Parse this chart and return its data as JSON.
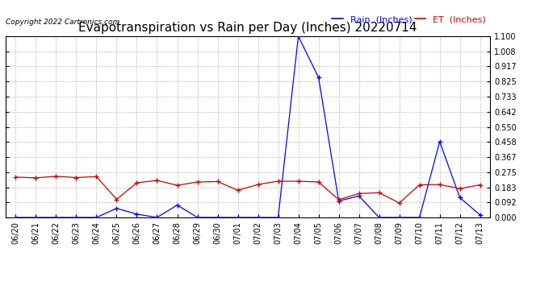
{
  "title": "Evapotranspiration vs Rain per Day (Inches) 20220714",
  "copyright": "Copyright 2022 Cartronics.com",
  "legend_rain": "Rain  (Inches)",
  "legend_et": "ET  (Inches)",
  "dates": [
    "06/20",
    "06/21",
    "06/22",
    "06/23",
    "06/24",
    "06/25",
    "06/26",
    "06/27",
    "06/28",
    "06/29",
    "06/30",
    "07/01",
    "07/02",
    "07/03",
    "07/04",
    "07/05",
    "07/06",
    "07/07",
    "07/08",
    "07/09",
    "07/10",
    "07/11",
    "07/12",
    "07/13"
  ],
  "rain": [
    0.0,
    0.0,
    0.0,
    0.0,
    0.0,
    0.055,
    0.02,
    0.0,
    0.075,
    0.0,
    0.0,
    0.0,
    0.0,
    0.0,
    1.1,
    0.85,
    0.1,
    0.13,
    0.0,
    0.0,
    0.0,
    0.46,
    0.12,
    0.015
  ],
  "et": [
    0.245,
    0.24,
    0.25,
    0.242,
    0.248,
    0.11,
    0.21,
    0.225,
    0.195,
    0.215,
    0.218,
    0.165,
    0.2,
    0.22,
    0.22,
    0.215,
    0.108,
    0.145,
    0.15,
    0.088,
    0.198,
    0.2,
    0.175,
    0.198
  ],
  "ylim": [
    0.0,
    1.1
  ],
  "yticks": [
    0.0,
    0.092,
    0.183,
    0.275,
    0.367,
    0.458,
    0.55,
    0.642,
    0.733,
    0.825,
    0.917,
    1.008,
    1.1
  ],
  "rain_color": "#0000ff",
  "et_color": "#cc0000",
  "background_color": "#ffffff",
  "grid_color": "#bbbbbb",
  "title_fontsize": 11,
  "copyright_fontsize": 6.5,
  "tick_fontsize": 7,
  "legend_fontsize": 8
}
